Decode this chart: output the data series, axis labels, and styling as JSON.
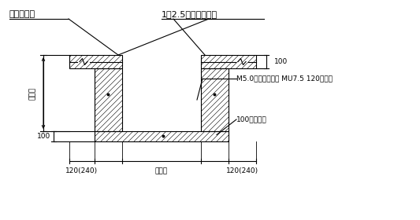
{
  "bg_color": "#ffffff",
  "line_color": "#000000",
  "label_dianliang": "地梁或承台",
  "label_mortar": "1：2.5水泥砂浆粉刷",
  "label_brick": "M5.0水泥砂浆砌筑 MU7.5 120厚砖墙",
  "label_concrete": "100厚砼垫层",
  "label_width": "地梁宽",
  "label_120left": "120(240)",
  "label_120right": "120(240)",
  "label_100left": "100",
  "label_100right": "100",
  "label_depth": "地梁深",
  "figsize": [
    5.33,
    2.8
  ],
  "dpi": 100
}
